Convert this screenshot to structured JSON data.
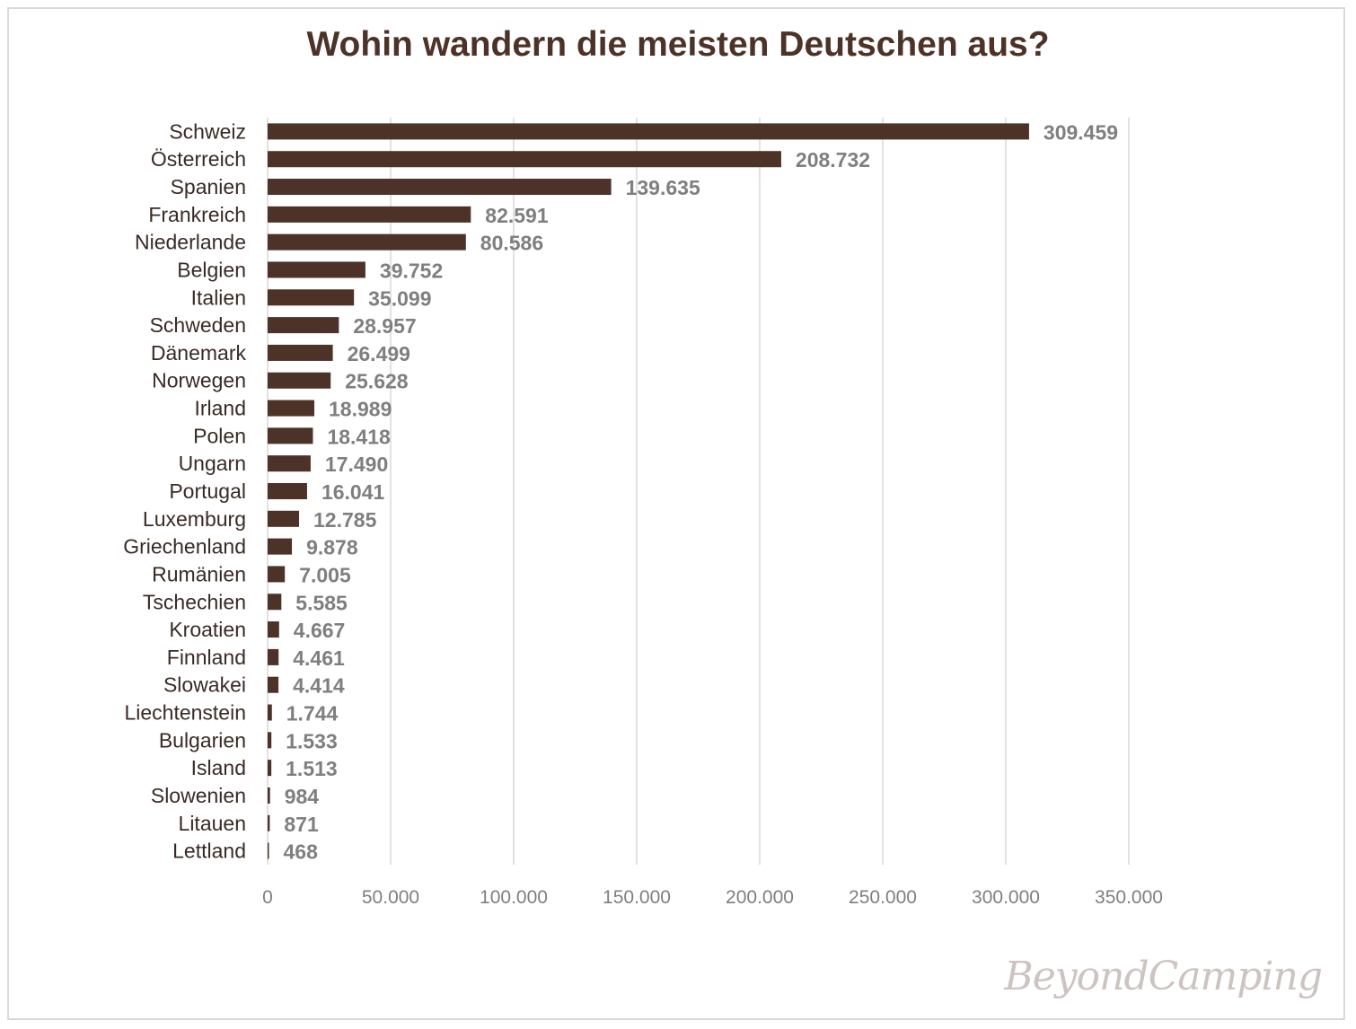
{
  "chart_data": {
    "type": "bar",
    "orientation": "horizontal",
    "title": "Wohin wandern die meisten Deutschen aus?",
    "categories": [
      "Schweiz",
      "Österreich",
      "Spanien",
      "Frankreich",
      "Niederlande",
      "Belgien",
      "Italien",
      "Schweden",
      "Dänemark",
      "Norwegen",
      "Irland",
      "Polen",
      "Ungarn",
      "Portugal",
      "Luxemburg",
      "Griechenland",
      "Rumänien",
      "Tschechien",
      "Kroatien",
      "Finnland",
      "Slowakei",
      "Liechtenstein",
      "Bulgarien",
      "Island",
      "Slowenien",
      "Litauen",
      "Lettland"
    ],
    "values": [
      309459,
      208732,
      139635,
      82591,
      80586,
      39752,
      35099,
      28957,
      26499,
      25628,
      18989,
      18418,
      17490,
      16041,
      12785,
      9878,
      7005,
      5585,
      4667,
      4461,
      4414,
      1744,
      1533,
      1513,
      984,
      871,
      468
    ],
    "data_labels": [
      "309.459",
      "208.732",
      "139.635",
      "82.591",
      "80.586",
      "39.752",
      "35.099",
      "28.957",
      "26.499",
      "25.628",
      "18.989",
      "18.418",
      "17.490",
      "16.041",
      "12.785",
      "9.878",
      "7.005",
      "5.585",
      "4.667",
      "4.461",
      "4.414",
      "1.744",
      "1.533",
      "1.513",
      "984",
      "871",
      "468"
    ],
    "xlim": [
      0,
      350000
    ],
    "x_ticks": [
      0,
      50000,
      100000,
      150000,
      200000,
      250000,
      300000,
      350000
    ],
    "x_tick_labels": [
      "0",
      "50.000",
      "100.000",
      "150.000",
      "200.000",
      "250.000",
      "300.000",
      "350.000"
    ],
    "xlabel": "",
    "ylabel": "",
    "grid": "vertical",
    "legend": "none",
    "colors": {
      "bar": "#4d3228",
      "data_label": "#7f7f7f",
      "title": "#4d3228",
      "category_label": "#3a2a24",
      "grid": "#d9d9d9"
    }
  },
  "watermark": "BeyondCamping"
}
